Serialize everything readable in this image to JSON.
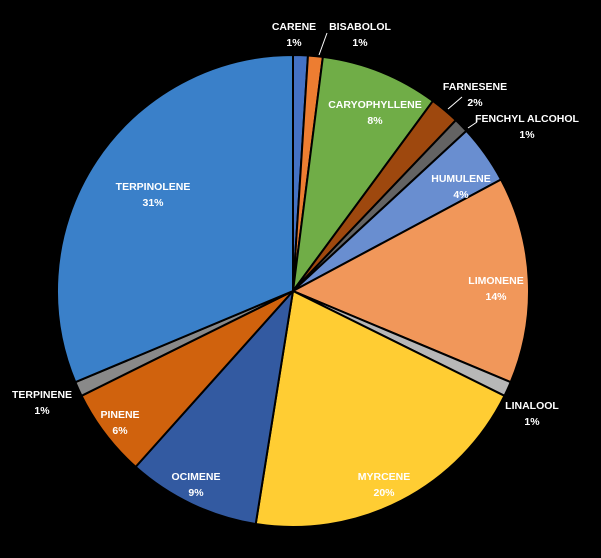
{
  "chart_data": {
    "type": "pie",
    "title": "",
    "slices": [
      {
        "label": "CARENE",
        "value": 1,
        "display": "1%",
        "color": "#4472C4"
      },
      {
        "label": "BISABOLOL",
        "value": 1,
        "display": "1%",
        "color": "#ED7D31"
      },
      {
        "label": "CARYOPHYLLENE",
        "value": 8,
        "display": "8%",
        "color": "#70AD47"
      },
      {
        "label": "FARNESENE",
        "value": 2,
        "display": "2%",
        "color": "#9E480E"
      },
      {
        "label": "FENCHYL ALCOHOL",
        "value": 1,
        "display": "1%",
        "color": "#636363"
      },
      {
        "label": "HUMULENE",
        "value": 4,
        "display": "4%",
        "color": "#698ED0"
      },
      {
        "label": "LIMONENE",
        "value": 14,
        "display": "14%",
        "color": "#F1975A"
      },
      {
        "label": "LINALOOL",
        "value": 1,
        "display": "1%",
        "color": "#B7B7B7"
      },
      {
        "label": "MYRCENE",
        "value": 20,
        "display": "20%",
        "color": "#FFCD33"
      },
      {
        "label": "OCIMENE",
        "value": 9,
        "display": "9%",
        "color": "#335AA1"
      },
      {
        "label": "PINENE",
        "value": 6,
        "display": "6%",
        "color": "#D0620D"
      },
      {
        "label": "TERPINENE",
        "value": 1,
        "display": "1%",
        "color": "#898989"
      },
      {
        "label": "TERPINOLENE",
        "value": 31,
        "display": "31%",
        "color": "#3A80C9"
      }
    ]
  }
}
